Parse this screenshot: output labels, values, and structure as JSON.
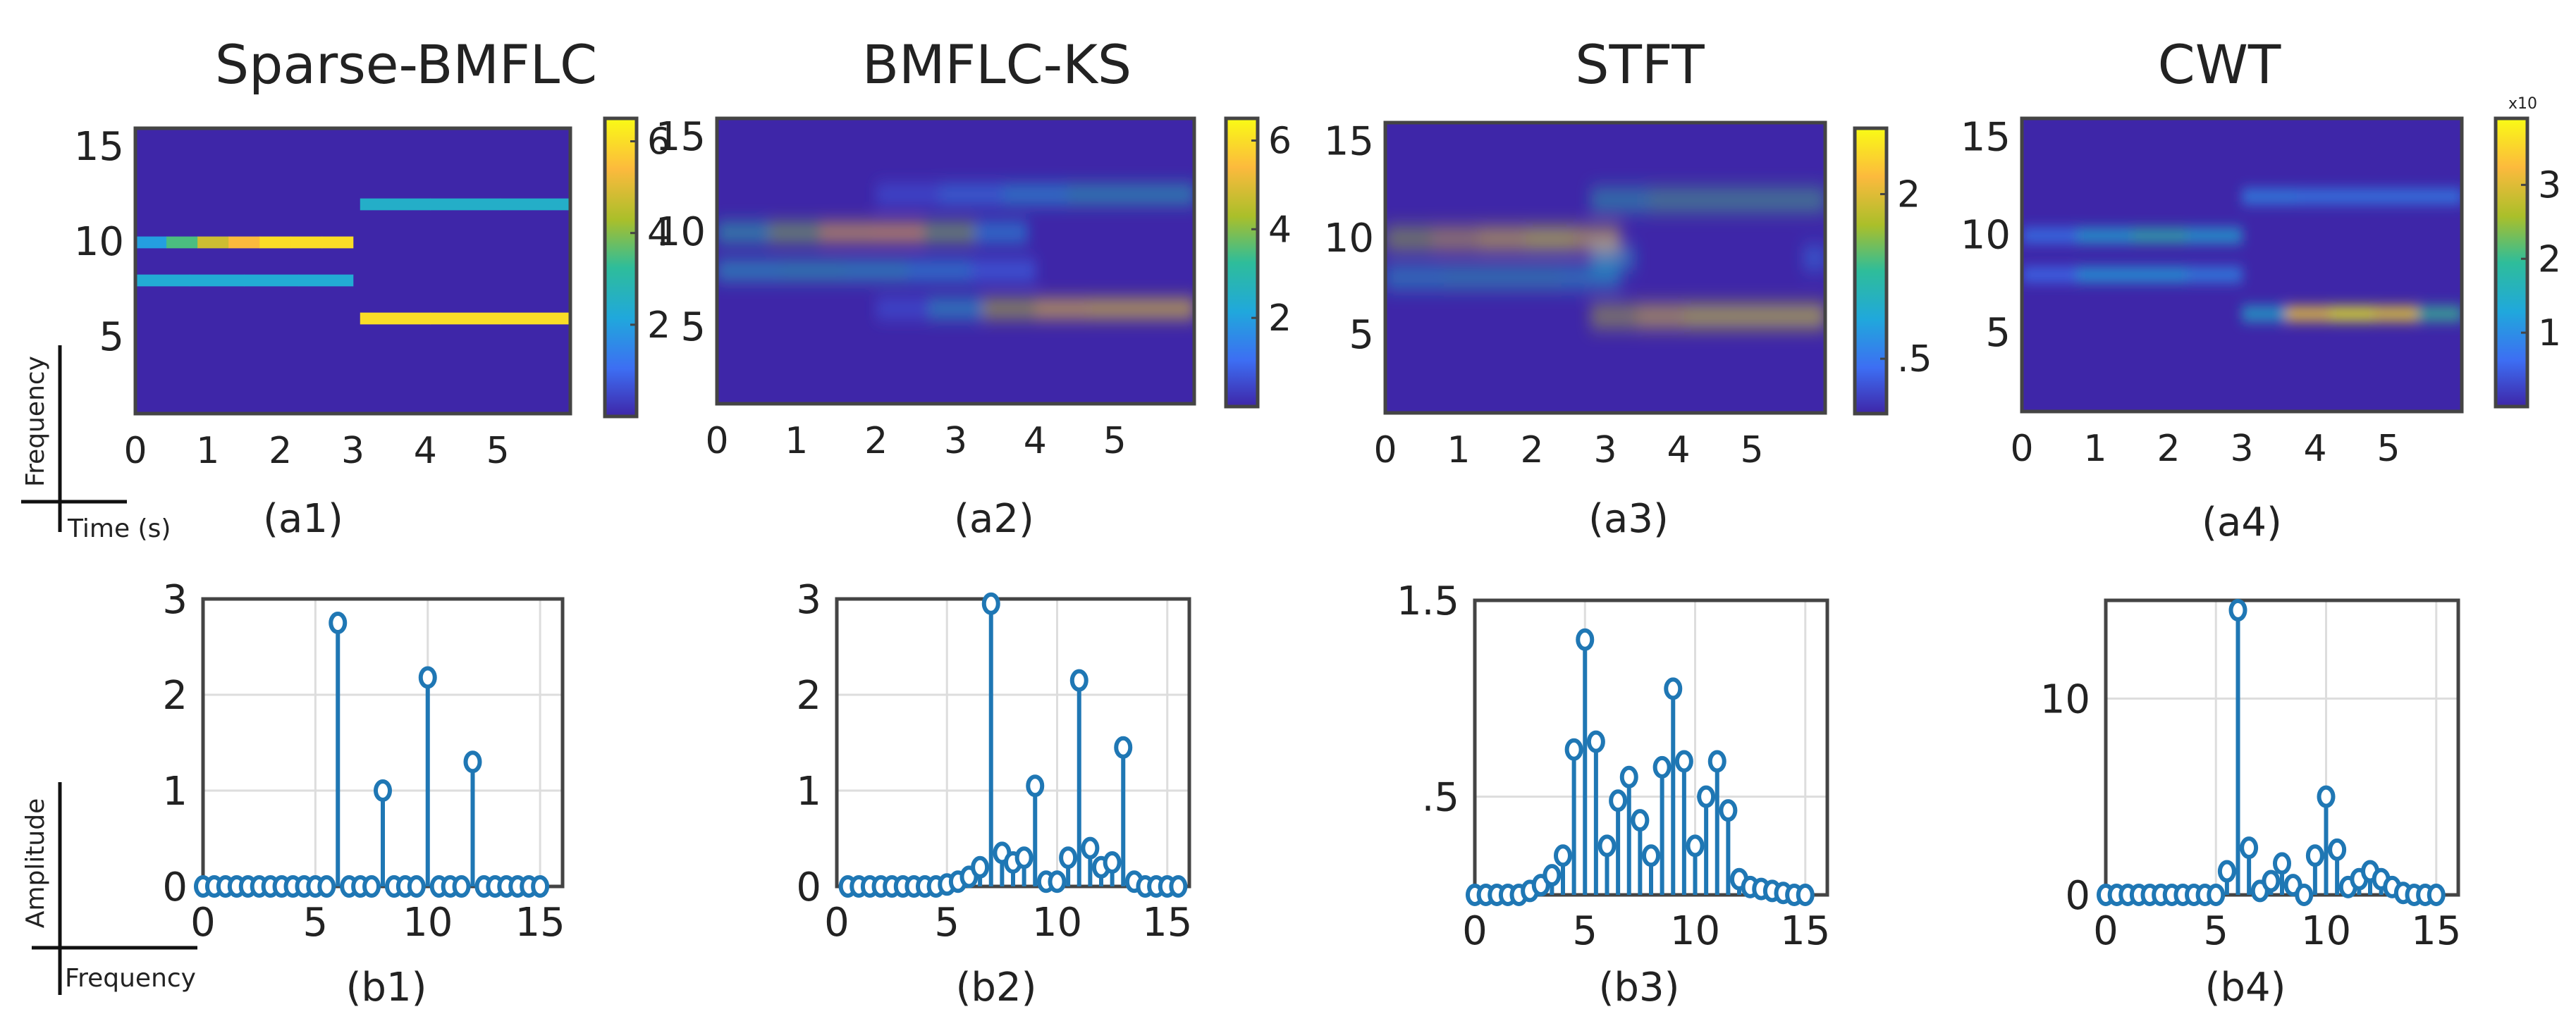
{
  "colors": {
    "background": "#ffffff",
    "axis": "#444444",
    "grid": "#dddddd",
    "stem": "#1f77b4",
    "colormap": [
      "#3e26a8",
      "#3d6ef3",
      "#20a8dc",
      "#2ebd9a",
      "#aabf2a",
      "#fcba3d",
      "#f9fb15"
    ]
  },
  "guides": {
    "top": {
      "ylabel": "Frequency",
      "xlabel": "Time (s)"
    },
    "bottom": {
      "ylabel": "Amplitude",
      "xlabel": "Frequency"
    }
  },
  "chart_data": [
    {
      "id": "a1",
      "type": "heatmap",
      "title": "Sparse-BMFLC",
      "caption": "(a1)",
      "xlabel": "Time (s)",
      "ylabel": "Frequency",
      "xlim": [
        0,
        6
      ],
      "ylim": [
        1,
        16
      ],
      "xticks": [
        "0",
        "1",
        "2",
        "3",
        "4",
        "5"
      ],
      "yticks": [
        "5",
        "10",
        "15"
      ],
      "colorbar": {
        "min": 0,
        "max": 6.5,
        "ticks": [
          "2",
          "4",
          "6"
        ],
        "multiplier": ""
      },
      "blur": 0,
      "features": [
        {
          "t0": 0,
          "t1": 3,
          "f": 10,
          "profile": [
            2,
            3.5,
            4.8,
            5.4,
            6,
            6,
            6
          ]
        },
        {
          "t0": 0,
          "t1": 3,
          "f": 8,
          "profile": [
            2.3,
            2.3,
            2.3,
            2.3
          ]
        },
        {
          "t0": 3.1,
          "t1": 6,
          "f": 12,
          "profile": [
            2.5,
            2.5,
            2.5
          ]
        },
        {
          "t0": 3.1,
          "t1": 6,
          "f": 6,
          "profile": [
            6,
            6,
            6
          ]
        }
      ]
    },
    {
      "id": "a2",
      "type": "heatmap",
      "title": "BMFLC-KS",
      "caption": "(a2)",
      "xlabel": "Time (s)",
      "ylabel": "Frequency",
      "xlim": [
        0,
        6
      ],
      "ylim": [
        1,
        16
      ],
      "xticks": [
        "0",
        "1",
        "2",
        "3",
        "4",
        "5"
      ],
      "yticks": [
        "5",
        "10",
        "15"
      ],
      "colorbar": {
        "min": 0,
        "max": 6.5,
        "ticks": [
          "2",
          "4",
          "6"
        ],
        "multiplier": ""
      },
      "blur": 0.3,
      "features": [
        {
          "t0": 0,
          "t1": 3.9,
          "f": 10,
          "profile": [
            3,
            4,
            5.3,
            5.4,
            4,
            2
          ]
        },
        {
          "t0": 0,
          "t1": 4,
          "f": 8,
          "profile": [
            2.6,
            2.8,
            2.6,
            2,
            1.2
          ]
        },
        {
          "t0": 2,
          "t1": 6,
          "f": 12,
          "profile": [
            0.8,
            1.5,
            2.2,
            2.8,
            2.8
          ]
        },
        {
          "t0": 2,
          "t1": 6,
          "f": 6,
          "profile": [
            0.8,
            2.5,
            4.5,
            5.8,
            6,
            6
          ]
        }
      ]
    },
    {
      "id": "a3",
      "type": "heatmap",
      "title": "STFT",
      "caption": "(a3)",
      "xlabel": "Time (s)",
      "ylabel": "Frequency",
      "xlim": [
        0,
        6
      ],
      "ylim": [
        1,
        16
      ],
      "xticks": [
        "0",
        "1",
        "2",
        "3",
        "4",
        "5"
      ],
      "yticks": [
        "5",
        "10",
        "15"
      ],
      "colorbar": {
        "min": 0,
        "max": 2.6,
        "ticks": [
          ".5",
          "2"
        ],
        "multiplier": ""
      },
      "blur": 0.8,
      "features": [
        {
          "t0": 0,
          "t1": 3.2,
          "f": 10,
          "profile": [
            1.7,
            2,
            2.4,
            2.6,
            2.4
          ]
        },
        {
          "t0": 0,
          "t1": 3.2,
          "f": 8,
          "profile": [
            1,
            1.1,
            1.1,
            1
          ]
        },
        {
          "t0": 2.8,
          "t1": 6,
          "f": 12,
          "profile": [
            1.2,
            1.4,
            1.4,
            1.4
          ]
        },
        {
          "t0": 2.8,
          "t1": 6,
          "f": 6,
          "profile": [
            1.8,
            2.4,
            2.6,
            2.6,
            2.6
          ]
        },
        {
          "t0": 2.8,
          "t1": 3.4,
          "f": 9,
          "profile": [
            1,
            1
          ]
        },
        {
          "t0": 5.7,
          "t1": 6,
          "f": 9,
          "profile": [
            0.6,
            0.6
          ]
        }
      ]
    },
    {
      "id": "a4",
      "type": "heatmap",
      "title": "CWT",
      "caption": "(a4)",
      "xlabel": "Time (s)",
      "ylabel": "Frequency",
      "xlim": [
        0,
        6
      ],
      "ylim": [
        1,
        16
      ],
      "xticks": [
        "0",
        "1",
        "2",
        "3",
        "4",
        "5"
      ],
      "yticks": [
        "5",
        "10",
        "15"
      ],
      "colorbar": {
        "min": 0,
        "max": 3.9,
        "ticks": [
          "1",
          "2",
          "3"
        ],
        "multiplier": "x10"
      },
      "blur": 0.6,
      "features": [
        {
          "t0": 0,
          "t1": 3,
          "f": 10,
          "profile": [
            0.8,
            1.4,
            1.8,
            1.4
          ]
        },
        {
          "t0": 0,
          "t1": 3,
          "f": 8,
          "profile": [
            0.7,
            1.3,
            1.3,
            1
          ]
        },
        {
          "t0": 3,
          "t1": 6,
          "f": 12,
          "profile": [
            1,
            0.9,
            0.9,
            0.9
          ]
        },
        {
          "t0": 3,
          "t1": 6,
          "f": 6,
          "profile": [
            1.5,
            3.5,
            3.9,
            3.6,
            2
          ]
        }
      ]
    },
    {
      "id": "b1",
      "type": "stem",
      "caption": "(b1)",
      "xlabel": "Frequency",
      "ylabel": "Amplitude",
      "xlim": [
        0,
        16
      ],
      "ylim": [
        0,
        3
      ],
      "xticks": [
        {
          "v": 0,
          "label": "0"
        },
        {
          "v": 5,
          "label": "5"
        },
        {
          "v": 10,
          "label": "10"
        },
        {
          "v": 15,
          "label": "15"
        }
      ],
      "yticks": [
        {
          "v": 0,
          "label": "0"
        },
        {
          "v": 1,
          "label": "1"
        },
        {
          "v": 2,
          "label": "2"
        },
        {
          "v": 3,
          "label": "3"
        }
      ],
      "x": [
        0,
        0.5,
        1,
        1.5,
        2,
        2.5,
        3,
        3.5,
        4,
        4.5,
        5,
        5.5,
        6,
        6.5,
        7,
        7.5,
        8,
        8.5,
        9,
        9.5,
        10,
        10.5,
        11,
        11.5,
        12,
        12.5,
        13,
        13.5,
        14,
        14.5,
        15
      ],
      "y": [
        0,
        0,
        0,
        0,
        0,
        0,
        0,
        0,
        0,
        0,
        0,
        0,
        2.75,
        0,
        0,
        0,
        1,
        0,
        0,
        0,
        2.18,
        0,
        0,
        0,
        1.3,
        0,
        0,
        0,
        0,
        0,
        0
      ]
    },
    {
      "id": "b2",
      "type": "stem",
      "caption": "(b2)",
      "xlabel": "Frequency",
      "ylabel": "Amplitude",
      "xlim": [
        0,
        16
      ],
      "ylim": [
        0,
        3
      ],
      "xticks": [
        {
          "v": 0,
          "label": "0"
        },
        {
          "v": 5,
          "label": "5"
        },
        {
          "v": 10,
          "label": "10"
        },
        {
          "v": 15,
          "label": "15"
        }
      ],
      "yticks": [
        {
          "v": 0,
          "label": "0"
        },
        {
          "v": 1,
          "label": "1"
        },
        {
          "v": 2,
          "label": "2"
        },
        {
          "v": 3,
          "label": "3"
        }
      ],
      "x": [
        0.5,
        1,
        1.5,
        2,
        2.5,
        3,
        3.5,
        4,
        4.5,
        5,
        5.5,
        6,
        6.5,
        7,
        7.5,
        8,
        8.5,
        9,
        9.5,
        10,
        10.5,
        11,
        11.5,
        12,
        12.5,
        13,
        13.5,
        14,
        14.5,
        15,
        15.5
      ],
      "y": [
        0,
        0,
        0,
        0,
        0,
        0,
        0,
        0,
        0,
        0.02,
        0.05,
        0.1,
        0.2,
        2.95,
        0.35,
        0.25,
        0.3,
        1.05,
        0.05,
        0.05,
        0.3,
        2.15,
        0.4,
        0.2,
        0.25,
        1.45,
        0.05,
        0,
        0,
        0,
        0
      ]
    },
    {
      "id": "b3",
      "type": "stem",
      "caption": "(b3)",
      "xlabel": "Frequency",
      "ylabel": "Amplitude",
      "xlim": [
        0,
        16
      ],
      "ylim": [
        0,
        1.5
      ],
      "xticks": [
        {
          "v": 0,
          "label": "0"
        },
        {
          "v": 5,
          "label": "5"
        },
        {
          "v": 10,
          "label": "10"
        },
        {
          "v": 15,
          "label": "15"
        }
      ],
      "yticks": [
        {
          "v": 0.5,
          "label": ".5"
        },
        {
          "v": 1.5,
          "label": "1.5"
        }
      ],
      "x": [
        0,
        0.5,
        1,
        1.5,
        2,
        2.5,
        3,
        3.5,
        4,
        4.5,
        5,
        5.5,
        6,
        6.5,
        7,
        7.5,
        8,
        8.5,
        9,
        9.5,
        10,
        10.5,
        11,
        11.5,
        12,
        12.5,
        13,
        13.5,
        14,
        14.5,
        15
      ],
      "y": [
        0,
        0,
        0,
        0,
        0,
        0.02,
        0.05,
        0.1,
        0.2,
        0.74,
        1.3,
        0.78,
        0.25,
        0.48,
        0.6,
        0.38,
        0.2,
        0.65,
        1.05,
        0.68,
        0.25,
        0.5,
        0.68,
        0.43,
        0.08,
        0.04,
        0.03,
        0.02,
        0.01,
        0,
        0
      ]
    },
    {
      "id": "b4",
      "type": "stem",
      "caption": "(b4)",
      "xlabel": "Frequency",
      "ylabel": "Amplitude",
      "xlim": [
        0,
        16
      ],
      "ylim": [
        0,
        15
      ],
      "xticks": [
        {
          "v": 0,
          "label": "0"
        },
        {
          "v": 5,
          "label": "5"
        },
        {
          "v": 10,
          "label": "10"
        },
        {
          "v": 15,
          "label": "15"
        }
      ],
      "yticks": [
        {
          "v": 0,
          "label": "0"
        },
        {
          "v": 10,
          "label": "10"
        }
      ],
      "x": [
        0,
        0.5,
        1,
        1.5,
        2,
        2.5,
        3,
        3.5,
        4,
        4.5,
        5,
        5.5,
        6,
        6.5,
        7,
        7.5,
        8,
        8.5,
        9,
        9.5,
        10,
        10.5,
        11,
        11.5,
        12,
        12.5,
        13,
        13.5,
        14,
        14.5,
        15
      ],
      "y": [
        0,
        0,
        0,
        0,
        0,
        0,
        0,
        0,
        0,
        0,
        0,
        1.2,
        14.5,
        2.4,
        0.2,
        0.7,
        1.6,
        0.5,
        0,
        2,
        5,
        2.3,
        0.4,
        0.8,
        1.2,
        0.8,
        0.4,
        0.1,
        0,
        0,
        0
      ]
    }
  ]
}
